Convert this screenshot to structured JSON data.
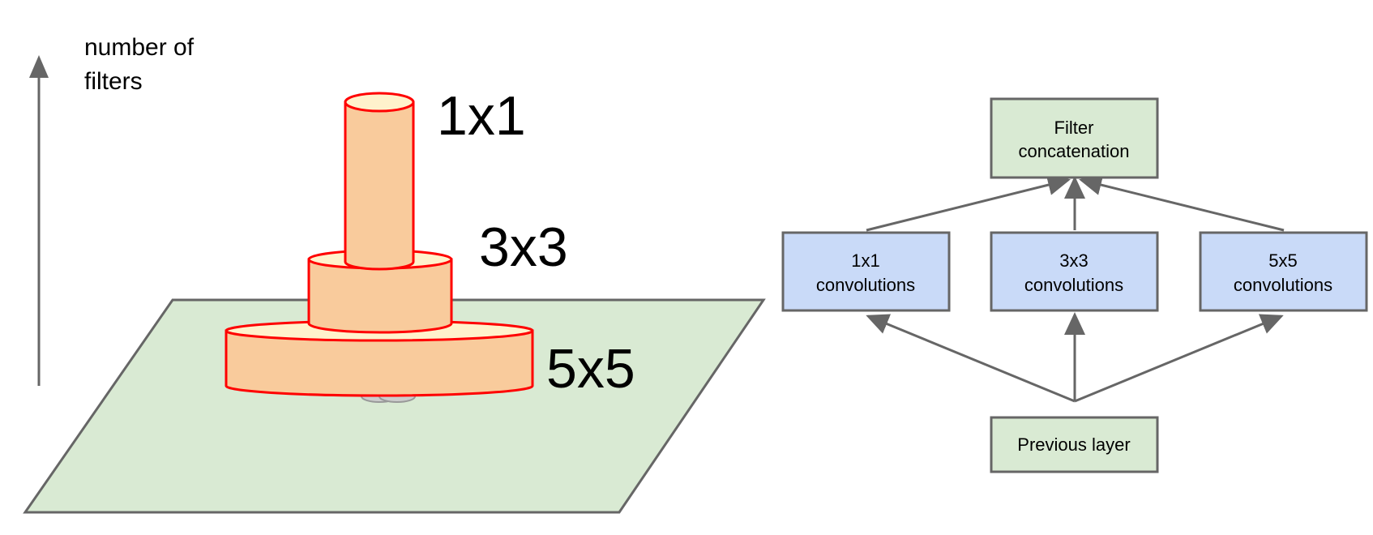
{
  "left_panel": {
    "axis_label_line1": "number of",
    "axis_label_line2": "filters",
    "filter_size_1x1": "1x1",
    "filter_size_3x3": "3x3",
    "filter_size_5x5": "5x5"
  },
  "right_panel": {
    "filter_concat_line1": "Filter",
    "filter_concat_line2": "concatenation",
    "conv_1x1_line1": "1x1",
    "conv_1x1_line2": "convolutions",
    "conv_3x3_line1": "3x3",
    "conv_3x3_line2": "convolutions",
    "conv_5x5_line1": "5x5",
    "conv_5x5_line2": "convolutions",
    "previous_layer": "Previous layer"
  },
  "colors": {
    "plane_fill": "#d9ead3",
    "node_green": "#d9ead3",
    "node_blue": "#c9daf8",
    "cylinder_fill": "#f9cb9c",
    "cylinder_top": "#fff2cc",
    "cylinder_stroke": "#ff0000",
    "line_gray": "#666666"
  }
}
